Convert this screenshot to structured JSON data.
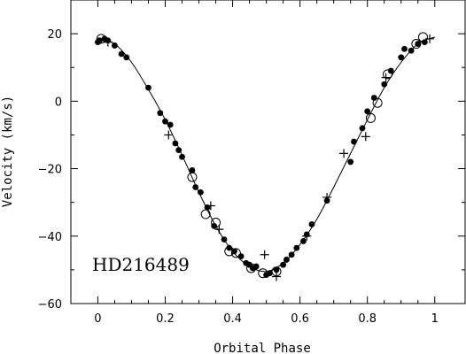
{
  "chart_data": {
    "type": "scatter",
    "title": "",
    "xlabel": "Orbital Phase",
    "ylabel": "Velocity (km/s)",
    "xlim": [
      -0.08,
      1.09
    ],
    "ylim": [
      -60,
      30
    ],
    "x_ticks": [
      "0",
      "0.2",
      "0.4",
      "0.6",
      "0.8",
      "1"
    ],
    "y_ticks": [
      "−60",
      "−40",
      "−20",
      "0",
      "20"
    ],
    "annotation": "HD216489",
    "grid": false,
    "series": [
      {
        "marker": "filled-circle",
        "points": [
          [
            0.0,
            17.5
          ],
          [
            0.005,
            18
          ],
          [
            0.02,
            18.5
          ],
          [
            0.03,
            18
          ],
          [
            0.05,
            16.5
          ],
          [
            0.07,
            14
          ],
          [
            0.085,
            13
          ],
          [
            0.15,
            4
          ],
          [
            0.185,
            -3.5
          ],
          [
            0.2,
            -6
          ],
          [
            0.215,
            -7
          ],
          [
            0.23,
            -12.5
          ],
          [
            0.24,
            -14.5
          ],
          [
            0.25,
            -16.5
          ],
          [
            0.28,
            -20.5
          ],
          [
            0.29,
            -25.5
          ],
          [
            0.305,
            -27
          ],
          [
            0.325,
            -31.5
          ],
          [
            0.345,
            -37
          ],
          [
            0.375,
            -41
          ],
          [
            0.39,
            -43.5
          ],
          [
            0.405,
            -44.5
          ],
          [
            0.425,
            -46
          ],
          [
            0.44,
            -48
          ],
          [
            0.45,
            -48.5
          ],
          [
            0.46,
            -49.5
          ],
          [
            0.47,
            -49
          ],
          [
            0.5,
            -51.5
          ],
          [
            0.51,
            -51
          ],
          [
            0.53,
            -50
          ],
          [
            0.55,
            -48.5
          ],
          [
            0.56,
            -47
          ],
          [
            0.575,
            -45.5
          ],
          [
            0.59,
            -43.5
          ],
          [
            0.61,
            -41.5
          ],
          [
            0.62,
            -39.5
          ],
          [
            0.635,
            -36.5
          ],
          [
            0.68,
            -29.5
          ],
          [
            0.75,
            -18
          ],
          [
            0.76,
            -12
          ],
          [
            0.785,
            -8
          ],
          [
            0.8,
            -3
          ],
          [
            0.82,
            1
          ],
          [
            0.85,
            5
          ],
          [
            0.87,
            9
          ],
          [
            0.9,
            13
          ],
          [
            0.91,
            15.5
          ],
          [
            0.93,
            15
          ],
          [
            0.95,
            17
          ],
          [
            0.97,
            17.5
          ]
        ]
      },
      {
        "marker": "open-circle",
        "points": [
          [
            0.01,
            18.5
          ],
          [
            0.28,
            -22.5
          ],
          [
            0.32,
            -33.5
          ],
          [
            0.35,
            -36
          ],
          [
            0.39,
            -44.5
          ],
          [
            0.41,
            -45
          ],
          [
            0.455,
            -49.5
          ],
          [
            0.49,
            -51
          ],
          [
            0.53,
            -50.5
          ],
          [
            0.81,
            -5
          ],
          [
            0.83,
            -0.5
          ],
          [
            0.86,
            8
          ],
          [
            0.945,
            17
          ],
          [
            0.965,
            19
          ]
        ]
      },
      {
        "marker": "plus",
        "points": [
          [
            0.03,
            17.5
          ],
          [
            0.21,
            -10
          ],
          [
            0.335,
            -31
          ],
          [
            0.36,
            -38
          ],
          [
            0.495,
            -45.5
          ],
          [
            0.53,
            -52
          ],
          [
            0.62,
            -40
          ],
          [
            0.68,
            -28.5
          ],
          [
            0.73,
            -15.5
          ],
          [
            0.795,
            -10.5
          ],
          [
            0.855,
            7
          ],
          [
            0.985,
            18.5
          ]
        ]
      }
    ],
    "fit_curve": {
      "x": [
        0.0,
        0.05,
        0.1,
        0.15,
        0.2,
        0.25,
        0.3,
        0.35,
        0.4,
        0.45,
        0.5,
        0.55,
        0.6,
        0.65,
        0.7,
        0.75,
        0.8,
        0.85,
        0.9,
        0.95,
        1.0
      ],
      "y": [
        18.8,
        17.0,
        11.5,
        3.5,
        -5.5,
        -16.0,
        -27.0,
        -37.0,
        -44.5,
        -49.0,
        -50.5,
        -48.0,
        -42.5,
        -35.0,
        -25.5,
        -15.5,
        -5.5,
        4.0,
        11.5,
        17.0,
        19.0
      ]
    }
  }
}
